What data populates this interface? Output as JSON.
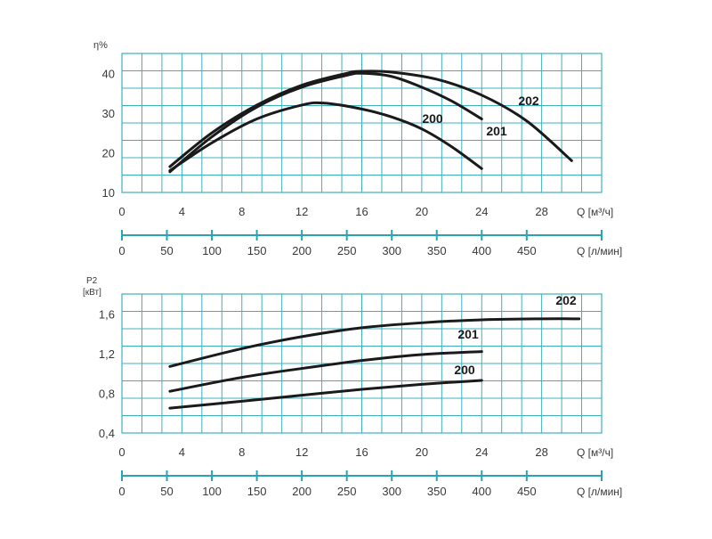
{
  "chart_data": [
    {
      "type": "line",
      "title": "",
      "ylabel": "η%",
      "xlabel": "Q [м³/ч]",
      "secondary_xlabel": "Q [л/мин]",
      "xlim": [
        0,
        32
      ],
      "ylim": [
        10,
        45
      ],
      "x_ticks": [
        0,
        4,
        8,
        12,
        16,
        20,
        24,
        28
      ],
      "y_ticks": [
        10,
        20,
        30,
        40
      ],
      "secondary_xlim": [
        0,
        533.3
      ],
      "secondary_x_ticks": [
        0,
        50,
        100,
        150,
        200,
        250,
        300,
        350,
        400,
        450
      ],
      "grid": true,
      "series": [
        {
          "name": "200",
          "x": [
            3.2,
            6,
            9,
            12,
            13.5,
            16,
            18,
            20,
            22,
            24
          ],
          "values": [
            15.5,
            22.5,
            28.5,
            32,
            32.5,
            31,
            29,
            26,
            21.5,
            16
          ]
        },
        {
          "name": "201",
          "x": [
            3.2,
            6,
            9,
            12,
            15,
            16,
            18,
            20,
            22,
            24
          ],
          "values": [
            15.2,
            24,
            31.5,
            36.5,
            39.5,
            40,
            39.2,
            36.5,
            33,
            28.5
          ]
        },
        {
          "name": "202",
          "x": [
            3.2,
            6,
            9,
            12,
            15,
            16,
            18,
            21,
            24,
            27,
            30
          ],
          "values": [
            16.5,
            25,
            32,
            37,
            40,
            40.5,
            40.3,
            38.5,
            34.5,
            28,
            18
          ]
        }
      ]
    },
    {
      "type": "line",
      "title": "",
      "ylabel_line1": "P2",
      "ylabel_line2": "[кВт]",
      "xlabel": "Q [м³/ч]",
      "secondary_xlabel": "Q [л/мин]",
      "xlim": [
        0,
        32
      ],
      "ylim": [
        0.4,
        1.8
      ],
      "x_ticks": [
        0,
        4,
        8,
        12,
        16,
        20,
        24,
        28
      ],
      "y_ticks": [
        "0,4",
        "0,8",
        "1,2",
        "1,6"
      ],
      "secondary_xlim": [
        0,
        533.3
      ],
      "secondary_x_ticks": [
        0,
        50,
        100,
        150,
        200,
        250,
        300,
        350,
        400,
        450
      ],
      "grid": true,
      "series": [
        {
          "name": "200",
          "x": [
            3.2,
            8,
            12,
            16,
            20,
            24
          ],
          "values": [
            0.65,
            0.72,
            0.78,
            0.84,
            0.89,
            0.93
          ]
        },
        {
          "name": "201",
          "x": [
            3.2,
            8,
            12,
            16,
            20,
            24
          ],
          "values": [
            0.82,
            0.96,
            1.05,
            1.13,
            1.19,
            1.22
          ]
        },
        {
          "name": "202",
          "x": [
            3.2,
            8,
            12,
            16,
            20,
            24,
            28,
            30.5
          ],
          "values": [
            1.07,
            1.25,
            1.37,
            1.46,
            1.51,
            1.54,
            1.55,
            1.55
          ]
        }
      ]
    }
  ]
}
